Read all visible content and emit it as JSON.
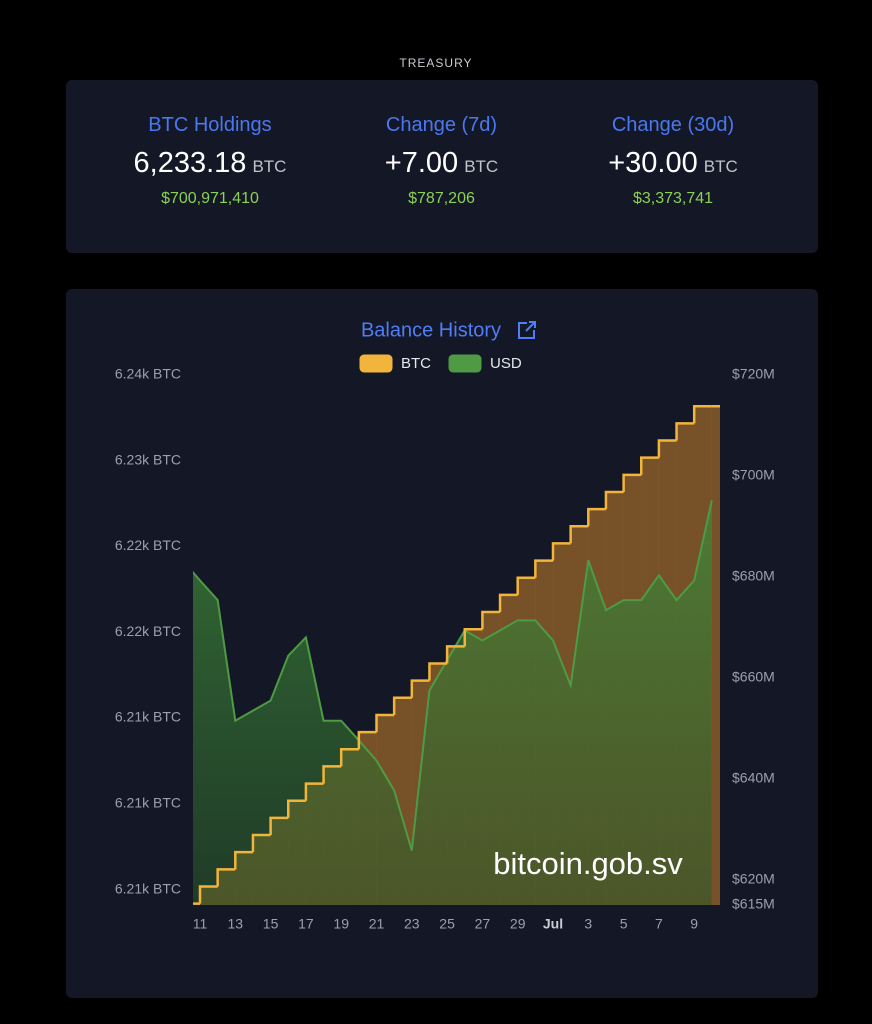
{
  "header": "TREASURY",
  "stats": [
    {
      "label": "BTC Holdings",
      "value": "6,233.18",
      "unit": "BTC",
      "usd": "$700,971,410"
    },
    {
      "label": "Change (7d)",
      "value": "+7.00",
      "unit": "BTC",
      "usd": "$787,206"
    },
    {
      "label": "Change (30d)",
      "value": "+30.00",
      "unit": "BTC",
      "usd": "$3,373,741"
    }
  ],
  "chart_data": {
    "type": "line",
    "title": "Balance History",
    "annotation": "bitcoin.gob.sv",
    "legend": "top",
    "categories": [
      null,
      "11",
      null,
      "13",
      null,
      "15",
      null,
      "17",
      null,
      "19",
      null,
      "21",
      null,
      "23",
      null,
      "25",
      null,
      "27",
      null,
      "29",
      null,
      "Jul",
      null,
      "3",
      null,
      "5",
      null,
      "7",
      null,
      "9",
      null
    ],
    "series": [
      {
        "name": "BTC",
        "color": "#f2b53c",
        "step": true,
        "values": [
          6204.18,
          6205.18,
          6206.18,
          6207.18,
          6208.18,
          6209.18,
          6210.18,
          6211.18,
          6212.18,
          6213.18,
          6214.18,
          6215.18,
          6216.18,
          6217.18,
          6218.18,
          6219.18,
          6220.18,
          6221.18,
          6222.18,
          6223.18,
          6224.18,
          6225.18,
          6226.18,
          6227.18,
          6228.18,
          6229.18,
          6230.18,
          6231.18,
          6232.18,
          6233.18,
          6233.18
        ]
      },
      {
        "name": "USD",
        "color": "#4e9a45",
        "axis": "y2",
        "values": [
          683.3,
          679.3,
          675.4,
          651.5,
          653.5,
          655.5,
          664.4,
          668,
          651.5,
          651.5,
          647.6,
          643.6,
          637.7,
          625.8,
          657.5,
          663.5,
          669.4,
          667.4,
          669.4,
          671.4,
          671.4,
          667.4,
          658.5,
          683.3,
          673.4,
          675.4,
          675.4,
          680.3,
          675.4,
          679.3,
          695.2
        ]
      }
    ],
    "ylim": [
      6204.1,
      6235
    ],
    "yticks": [
      {
        "value": 6235,
        "label": "6.24k BTC"
      },
      {
        "value": 6230,
        "label": "6.23k BTC"
      },
      {
        "value": 6225,
        "label": "6.22k BTC"
      },
      {
        "value": 6220,
        "label": "6.22k BTC"
      },
      {
        "value": 6215,
        "label": "6.21k BTC"
      },
      {
        "value": 6210,
        "label": "6.21k BTC"
      },
      {
        "value": 6205,
        "label": "6.21k BTC"
      }
    ],
    "y2lim": [
      615,
      720
    ],
    "y2ticks": [
      {
        "value": 720,
        "label": "$720M"
      },
      {
        "value": 700,
        "label": "$700M"
      },
      {
        "value": 680,
        "label": "$680M"
      },
      {
        "value": 660,
        "label": "$660M"
      },
      {
        "value": 640,
        "label": "$640M"
      },
      {
        "value": 620,
        "label": "$620M"
      },
      {
        "value": 615,
        "label": "$615M"
      }
    ]
  }
}
